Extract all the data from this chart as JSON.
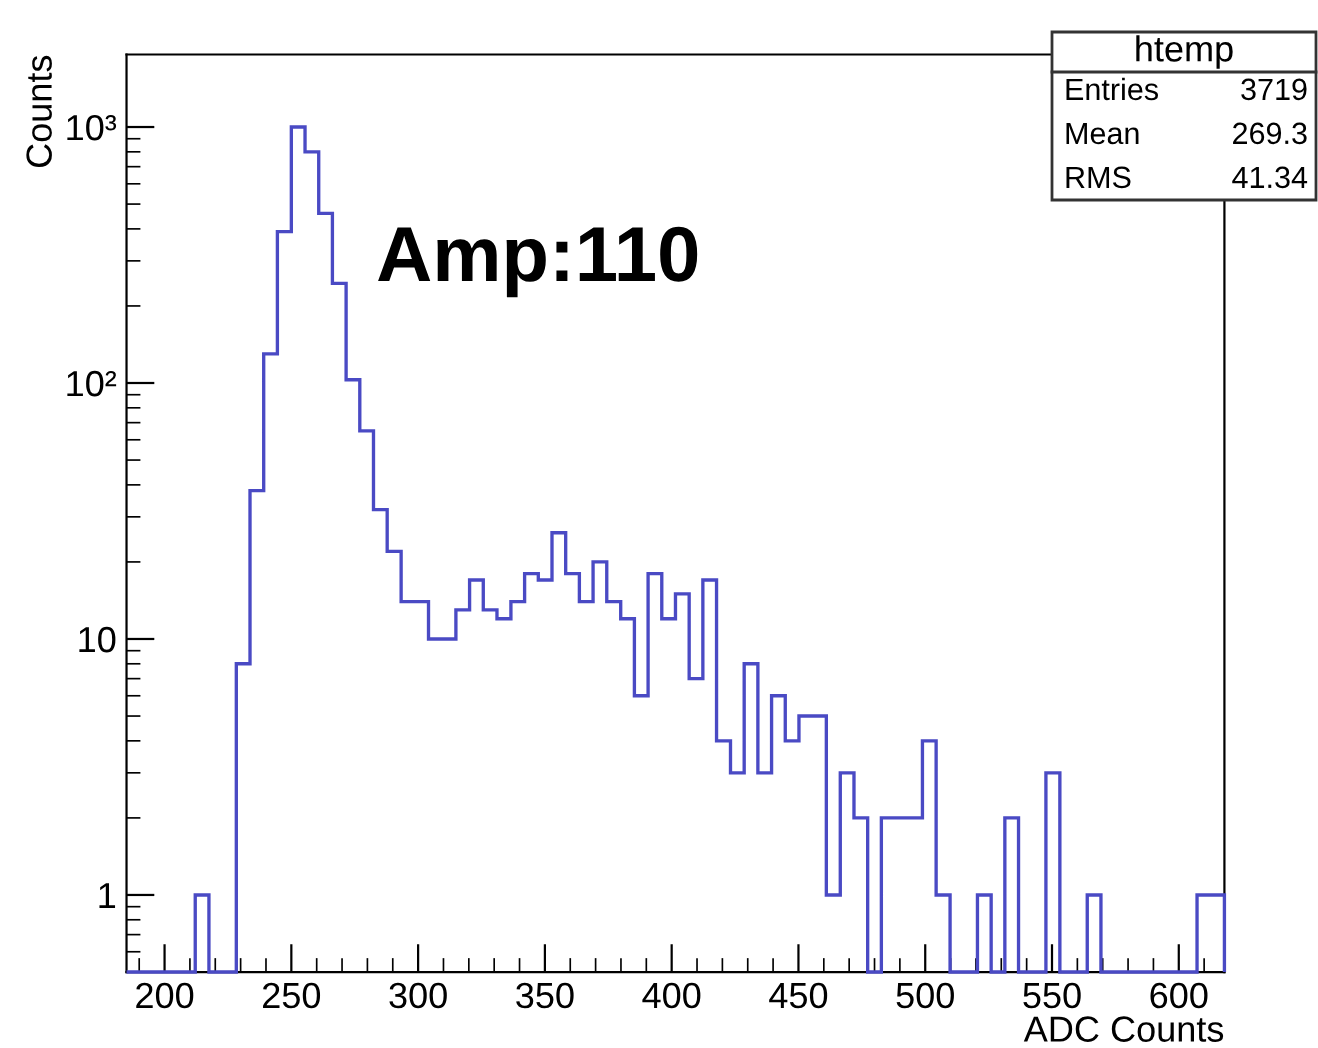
{
  "chart_data": {
    "type": "histogram",
    "xlabel": "ADC Counts",
    "ylabel": "Counts",
    "color": "#4a4ac4",
    "bins": [
      185.0,
      190.4,
      195.8,
      201.2,
      206.7,
      212.1,
      217.5,
      222.9,
      228.3,
      233.7,
      239.1,
      244.5,
      250.0,
      255.4,
      260.8,
      266.2,
      271.6,
      277.0,
      282.4,
      287.8,
      293.3,
      298.7,
      304.1,
      309.5,
      314.9,
      320.3,
      325.7,
      331.1,
      336.6,
      342.0,
      347.4,
      352.8,
      358.2,
      363.6,
      369.0,
      374.4,
      379.9,
      385.3,
      390.7,
      396.1,
      401.5,
      406.9,
      412.3,
      417.7,
      423.2,
      428.6,
      434.0,
      439.4,
      444.8,
      450.2,
      455.6,
      461.0,
      466.5,
      471.9,
      477.3,
      482.7,
      488.1,
      493.5,
      498.9,
      504.3,
      509.8,
      515.2,
      520.6,
      526.0,
      531.4,
      536.8,
      542.2,
      547.6,
      553.1,
      558.5,
      563.9,
      569.3,
      574.7,
      580.1,
      585.5,
      590.9,
      596.4,
      601.8,
      607.2,
      612.6,
      618.0
    ],
    "values": [
      null,
      null,
      null,
      null,
      null,
      1,
      null,
      null,
      8,
      38,
      130,
      390,
      1000,
      800,
      460,
      245,
      103,
      65,
      32,
      22,
      14,
      14,
      10,
      10,
      13,
      17,
      13,
      12,
      14,
      18,
      17,
      26,
      18,
      14,
      20,
      14,
      12,
      6,
      18,
      12,
      15,
      7,
      17,
      4,
      3,
      8,
      3,
      6,
      4,
      5,
      5,
      1,
      3,
      2,
      null,
      2,
      2,
      2,
      4,
      1,
      null,
      null,
      1,
      null,
      2,
      null,
      null,
      3,
      null,
      null,
      1,
      null,
      null,
      null,
      null,
      null,
      null,
      null,
      1,
      1
    ],
    "log": "y",
    "xlim": [
      185,
      618
    ],
    "ylim": [
      0.5,
      1920
    ],
    "xticks": [
      200,
      250,
      300,
      350,
      400,
      450,
      500,
      550,
      600
    ],
    "yticks": [
      {
        "value": 1,
        "label": "1"
      },
      {
        "value": 10,
        "label": "10"
      },
      {
        "value": 100,
        "label": "10²"
      },
      {
        "value": 1000,
        "label": "10³"
      }
    ],
    "grid": false,
    "legend": false,
    "annotations": [
      "Amp:110",
      "htemp",
      "Entries",
      "3719",
      "Mean",
      "269.3",
      "RMS",
      "41.34"
    ]
  }
}
